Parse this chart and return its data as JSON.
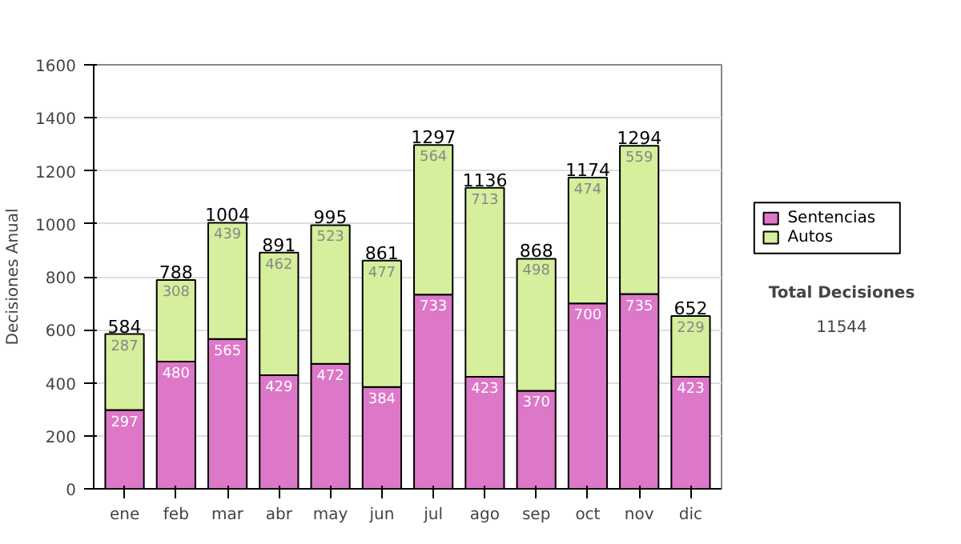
{
  "chart_data": {
    "type": "bar",
    "stacked": true,
    "ylabel": "Decisiones Anual",
    "categories": [
      "ene",
      "feb",
      "mar",
      "abr",
      "may",
      "jun",
      "jul",
      "ago",
      "sep",
      "oct",
      "nov",
      "dic"
    ],
    "series": [
      {
        "name": "Sentencias",
        "color": "#dd77c8",
        "values": [
          297,
          480,
          565,
          429,
          472,
          384,
          733,
          423,
          370,
          700,
          735,
          423
        ]
      },
      {
        "name": "Autos",
        "color": "#d6ef9c",
        "values": [
          287,
          308,
          439,
          462,
          523,
          477,
          564,
          713,
          498,
          474,
          559,
          229
        ]
      }
    ],
    "totals": [
      "584",
      "788",
      "1004",
      "891",
      "995",
      "861",
      "1297",
      "1136",
      "868",
      "1174",
      "1294",
      "652"
    ],
    "data_labels": true,
    "ylim": [
      0,
      1600
    ],
    "yticks": [
      0,
      200,
      400,
      600,
      800,
      1000,
      1200,
      1400,
      1600
    ],
    "grid": "y",
    "legend": "right",
    "annotations": [
      "Total Decisiones",
      "11544"
    ]
  }
}
